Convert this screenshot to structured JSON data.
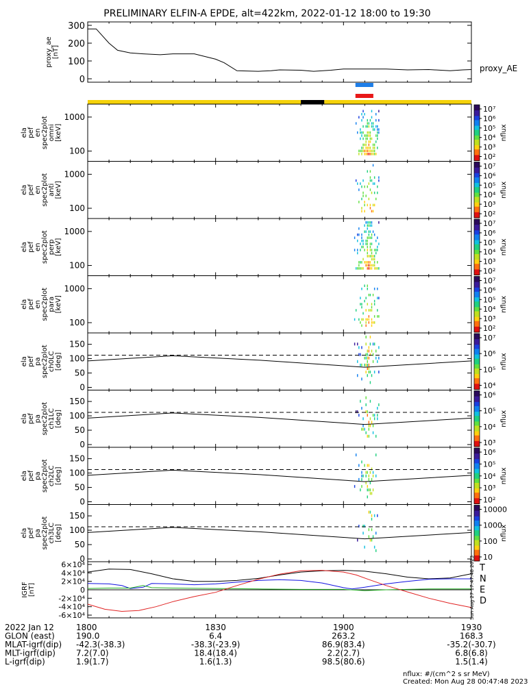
{
  "title": "PRELIMINARY ELFIN-A EPDE, alt=422km, 2022-01-12 18:00 to 19:30",
  "colors": {
    "ae_line": "#000000",
    "bar_yellow": "#f5d20a",
    "bar_black": "#000000",
    "bar_blue": "#1e7ee8",
    "bar_red": "#e81818",
    "T": "#000000",
    "N": "#1010e0",
    "E": "#20b020",
    "D": "#e02020"
  },
  "chart_data": [
    {
      "id": "proxy_ae",
      "type": "line",
      "ylabel": "proxy_ae\n[nT]",
      "legend": "proxy_AE",
      "ylim": [
        0,
        300
      ],
      "yticks": [
        "0",
        "100",
        "200",
        "300"
      ],
      "x_minutes": [
        0,
        2,
        5,
        7,
        10,
        13,
        17,
        20,
        25,
        30,
        32,
        35,
        40,
        43,
        45,
        50,
        53,
        57,
        60,
        65,
        70,
        75,
        80,
        85,
        88,
        90
      ],
      "values": [
        280,
        280,
        200,
        160,
        145,
        140,
        135,
        140,
        140,
        110,
        90,
        45,
        42,
        45,
        50,
        48,
        42,
        48,
        55,
        55,
        55,
        50,
        52,
        45,
        50,
        52
      ]
    },
    {
      "id": "orbit_bars",
      "type": "bar",
      "segments": [
        {
          "from": 0,
          "to": 50,
          "color": "bar_yellow"
        },
        {
          "from": 50,
          "to": 55.5,
          "color": "bar_black"
        },
        {
          "from": 55.5,
          "to": 90,
          "color": "bar_yellow"
        }
      ],
      "blue": [
        62.8,
        67
      ],
      "red": [
        62.8,
        67
      ]
    },
    {
      "id": "omni",
      "type": "heatmap",
      "ylabel": [
        "ela",
        "pef",
        "en",
        "spec2plot",
        "omni",
        "[keV]"
      ],
      "yticks": [
        "100",
        "1000"
      ],
      "cbar_label": "nflux",
      "cbar_ticks": [
        "10²",
        "10³",
        "10⁴",
        "10⁵",
        "10⁶",
        "10⁷"
      ],
      "intensity": "high"
    },
    {
      "id": "anti",
      "type": "heatmap",
      "ylabel": [
        "ela",
        "pef",
        "en",
        "spec2plot",
        "anti",
        "[keV]"
      ],
      "yticks": [
        "100",
        "1000"
      ],
      "cbar_label": "nflux",
      "cbar_ticks": [
        "10²",
        "10³",
        "10⁴",
        "10⁵",
        "10⁶",
        "10⁷"
      ],
      "intensity": "low"
    },
    {
      "id": "perp",
      "type": "heatmap",
      "ylabel": [
        "ela",
        "pef",
        "en",
        "spec2plot",
        "perp",
        "[keV]"
      ],
      "yticks": [
        "100",
        "1000"
      ],
      "cbar_label": "nflux",
      "cbar_ticks": [
        "10²",
        "10³",
        "10⁴",
        "10⁵",
        "10⁶",
        "10⁷"
      ],
      "intensity": "high"
    },
    {
      "id": "para",
      "type": "heatmap",
      "ylabel": [
        "ela",
        "pef",
        "en",
        "spec2plot",
        "para",
        "[keV]"
      ],
      "yticks": [
        "100",
        "1000"
      ],
      "cbar_label": "nflux",
      "cbar_ticks": [
        "10²",
        "10³",
        "10⁴",
        "10⁵",
        "10⁶",
        "10⁷"
      ],
      "intensity": "low"
    },
    {
      "id": "ch0LC",
      "type": "heatmap",
      "ylabel": [
        "ela",
        "pef",
        "pa",
        "spec2plot",
        "ch0LC",
        "[deg]"
      ],
      "yticks": [
        "0",
        "50",
        "100",
        "150"
      ],
      "ylim": [
        0,
        180
      ],
      "cbar_label": "nflux",
      "cbar_ticks": [
        "10⁴",
        "10⁵",
        "10⁶",
        "10⁷"
      ],
      "dashed_level": 112,
      "intensity": "high"
    },
    {
      "id": "ch1LC",
      "type": "heatmap",
      "ylabel": [
        "ela",
        "pef",
        "pa",
        "spec2plot",
        "ch1LC",
        "[deg]"
      ],
      "yticks": [
        "0",
        "50",
        "100",
        "150"
      ],
      "ylim": [
        0,
        180
      ],
      "cbar_label": "nflux",
      "cbar_ticks": [
        "10³",
        "10⁴",
        "10⁵",
        "10⁶"
      ],
      "dashed_level": 112,
      "intensity": "mid"
    },
    {
      "id": "ch2LC",
      "type": "heatmap",
      "ylabel": [
        "ela",
        "pef",
        "pa",
        "spec2plot",
        "ch2LC",
        "[deg]"
      ],
      "yticks": [
        "0",
        "50",
        "100",
        "150"
      ],
      "ylim": [
        0,
        180
      ],
      "cbar_label": "nflux",
      "cbar_ticks": [
        "10²",
        "10³",
        "10⁴",
        "10⁵",
        "10⁶"
      ],
      "dashed_level": 112,
      "intensity": "mid"
    },
    {
      "id": "ch3LC",
      "type": "heatmap",
      "ylabel": [
        "ela",
        "pef",
        "pa",
        "spec2plot",
        "ch3LC",
        "[deg]"
      ],
      "yticks": [
        "0",
        "50",
        "100",
        "150"
      ],
      "ylim": [
        0,
        180
      ],
      "cbar_label": "nflux",
      "cbar_ticks": [
        "10",
        "100",
        "1000",
        "10000"
      ],
      "dashed_level": 112,
      "intensity": "low"
    },
    {
      "id": "igrf",
      "type": "line",
      "ylabel": "IGRF\n[nT]",
      "ylim": [
        -60000,
        60000
      ],
      "yticks": [
        "-6×10⁴",
        "-4×10⁴",
        "-2×10⁴",
        "0",
        "2×10⁴",
        "4×10⁴",
        "6×10⁴"
      ],
      "series": [
        {
          "name": "T",
          "color": "T",
          "x": [
            0,
            5,
            10,
            15,
            20,
            25,
            30,
            35,
            40,
            45,
            50,
            55,
            60,
            65,
            70,
            75,
            80,
            85,
            90
          ],
          "values": [
            42000,
            49000,
            48000,
            38000,
            26000,
            20000,
            20000,
            22000,
            27000,
            35000,
            42000,
            45000,
            46000,
            44000,
            38000,
            30000,
            26000,
            28000,
            38000
          ]
        },
        {
          "name": "N",
          "color": "N",
          "x": [
            0,
            5,
            8,
            10,
            13,
            15,
            20,
            25,
            30,
            35,
            40,
            45,
            50,
            55,
            60,
            62,
            65,
            70,
            75,
            80,
            85,
            90
          ],
          "values": [
            15000,
            14000,
            10000,
            3000,
            6000,
            15000,
            14000,
            12000,
            14000,
            18000,
            22000,
            24000,
            22000,
            16000,
            5000,
            2000,
            6000,
            14000,
            20000,
            25000,
            26000,
            26000
          ]
        },
        {
          "name": "E",
          "color": "E",
          "x": [
            0,
            5,
            10,
            13,
            15,
            20,
            30,
            40,
            50,
            60,
            65,
            70,
            80,
            90
          ],
          "values": [
            3000,
            4000,
            4000,
            10000,
            5000,
            4000,
            3000,
            2000,
            1000,
            1000,
            -2000,
            0,
            2000,
            2000
          ]
        },
        {
          "name": "D",
          "color": "D",
          "x": [
            0,
            4,
            8,
            12,
            16,
            20,
            25,
            30,
            35,
            40,
            45,
            50,
            55,
            60,
            63,
            66,
            70,
            75,
            80,
            85,
            90
          ],
          "values": [
            -34000,
            -46000,
            -51000,
            -49000,
            -40000,
            -28000,
            -16000,
            -6000,
            10000,
            25000,
            37000,
            45000,
            46000,
            42000,
            35000,
            24000,
            10000,
            -5000,
            -20000,
            -32000,
            -42000
          ]
        }
      ],
      "labels": [
        "T",
        "N",
        "E",
        "D"
      ]
    }
  ],
  "time_axis": {
    "ticks": [
      "1800",
      "1830",
      "1900",
      "1930"
    ],
    "rows": [
      {
        "label": "2022 Jan 12",
        "values": [
          "1800",
          "1830",
          "1900",
          "1930"
        ]
      },
      {
        "label": "GLON (east)",
        "values": [
          "190.0",
          "6.4",
          "263.2",
          "168.3"
        ]
      },
      {
        "label": "MLAT-igrf(dip)",
        "values": [
          "-42.3(-38.3)",
          "-38.3(-23.9)",
          "86.9(83.4)",
          "-35.2(-30.7)"
        ]
      },
      {
        "label": "MLT-igrf(dip)",
        "values": [
          "7.2(7.0)",
          "18.4(18.4)",
          "2.2(2.7)",
          "6.8(6.8)"
        ]
      },
      {
        "label": "L-igrf(dip)",
        "values": [
          "1.9(1.7)",
          "1.6(1.3)",
          "98.5(80.6)",
          "1.5(1.4)"
        ]
      }
    ]
  },
  "footer": {
    "units": "nflux: #/(cm^2 s sr MeV)",
    "created": "Created: Mon Aug 28 00:47:48 2023",
    "stamp": "Sun Aug 27 17:47:48 2023"
  }
}
